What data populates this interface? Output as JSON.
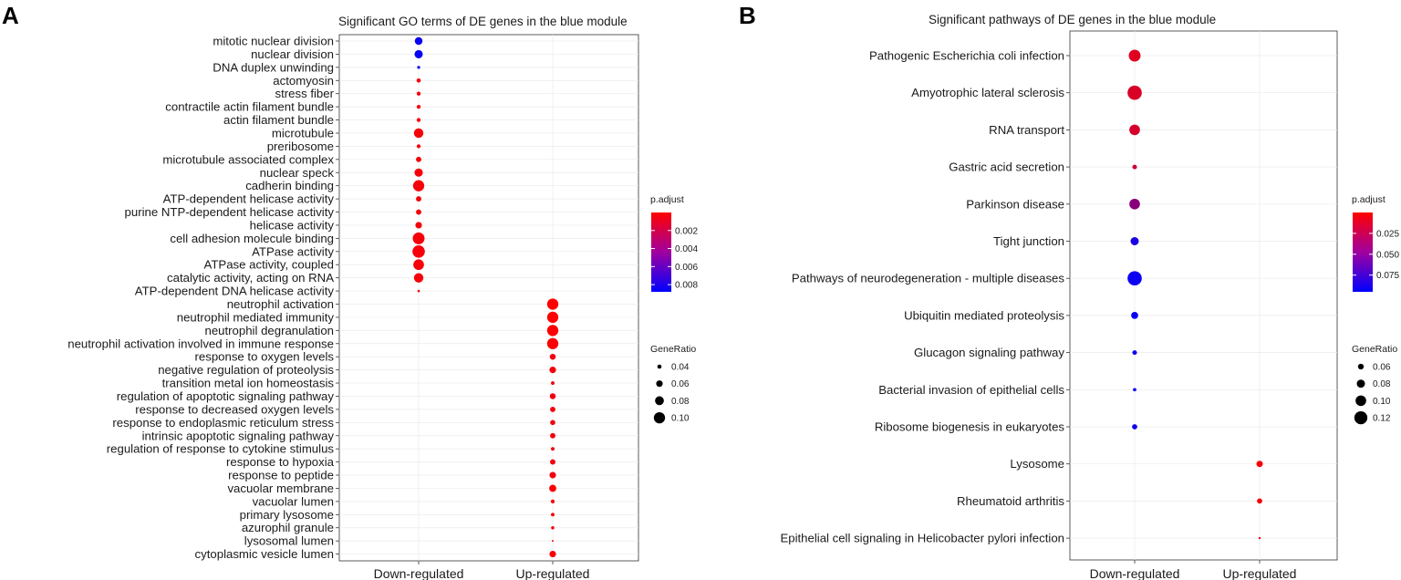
{
  "chart_data": [
    {
      "panel": "A",
      "type": "scatter",
      "title": "Significant GO terms of DE genes in the blue module",
      "x_categories": [
        "Down-regulated",
        "Up-regulated"
      ],
      "y_categories": [
        "mitotic nuclear division",
        "nuclear division",
        "DNA duplex unwinding",
        "actomyosin",
        "stress fiber",
        "contractile actin filament bundle",
        "actin filament bundle",
        "microtubule",
        "preribosome",
        "microtubule associated complex",
        "nuclear speck",
        "cadherin binding",
        "ATP-dependent helicase activity",
        "purine NTP-dependent helicase activity",
        "helicase activity",
        "cell adhesion molecule binding",
        "ATPase activity",
        "ATPase activity, coupled",
        "catalytic activity, acting on RNA",
        "ATP-dependent DNA helicase activity",
        "neutrophil activation",
        "neutrophil mediated immunity",
        "neutrophil degranulation",
        "neutrophil activation involved in immune response",
        "response to oxygen levels",
        "negative regulation of proteolysis",
        "transition metal ion homeostasis",
        "regulation of apoptotic signaling pathway",
        "response to decreased oxygen levels",
        "response to endoplasmic reticulum stress",
        "intrinsic apoptotic signaling pathway",
        "regulation of response to cytokine stimulus",
        "response to hypoxia",
        "response to peptide",
        "vacuolar membrane",
        "vacuolar lumen",
        "primary lysosome",
        "azurophil granule",
        "lysosomal lumen",
        "cytoplasmic vesicle lumen"
      ],
      "points": [
        {
          "term": "mitotic nuclear division",
          "group": "Down-regulated",
          "gene_ratio": 0.07,
          "p_adjust": 0.0085
        },
        {
          "term": "nuclear division",
          "group": "Down-regulated",
          "gene_ratio": 0.075,
          "p_adjust": 0.0085
        },
        {
          "term": "DNA duplex unwinding",
          "group": "Down-regulated",
          "gene_ratio": 0.03,
          "p_adjust": 0.0082
        },
        {
          "term": "actomyosin",
          "group": "Down-regulated",
          "gene_ratio": 0.04,
          "p_adjust": 0.0003
        },
        {
          "term": "stress fiber",
          "group": "Down-regulated",
          "gene_ratio": 0.038,
          "p_adjust": 0.0003
        },
        {
          "term": "contractile actin filament bundle",
          "group": "Down-regulated",
          "gene_ratio": 0.038,
          "p_adjust": 0.0003
        },
        {
          "term": "actin filament bundle",
          "group": "Down-regulated",
          "gene_ratio": 0.038,
          "p_adjust": 0.0003
        },
        {
          "term": "microtubule",
          "group": "Down-regulated",
          "gene_ratio": 0.085,
          "p_adjust": 0.0003
        },
        {
          "term": "preribosome",
          "group": "Down-regulated",
          "gene_ratio": 0.038,
          "p_adjust": 0.0003
        },
        {
          "term": "microtubule associated complex",
          "group": "Down-regulated",
          "gene_ratio": 0.05,
          "p_adjust": 0.0003
        },
        {
          "term": "nuclear speck",
          "group": "Down-regulated",
          "gene_ratio": 0.075,
          "p_adjust": 0.0003
        },
        {
          "term": "cadherin binding",
          "group": "Down-regulated",
          "gene_ratio": 0.1,
          "p_adjust": 0.0003
        },
        {
          "term": "ATP-dependent helicase activity",
          "group": "Down-regulated",
          "gene_ratio": 0.05,
          "p_adjust": 0.0003
        },
        {
          "term": "purine NTP-dependent helicase activity",
          "group": "Down-regulated",
          "gene_ratio": 0.05,
          "p_adjust": 0.0003
        },
        {
          "term": "helicase activity",
          "group": "Down-regulated",
          "gene_ratio": 0.06,
          "p_adjust": 0.0003
        },
        {
          "term": "cell adhesion molecule binding",
          "group": "Down-regulated",
          "gene_ratio": 0.105,
          "p_adjust": 0.0003
        },
        {
          "term": "ATPase activity",
          "group": "Down-regulated",
          "gene_ratio": 0.11,
          "p_adjust": 0.0003
        },
        {
          "term": "ATPase activity, coupled",
          "group": "Down-regulated",
          "gene_ratio": 0.095,
          "p_adjust": 0.0003
        },
        {
          "term": "catalytic activity, acting on RNA",
          "group": "Down-regulated",
          "gene_ratio": 0.085,
          "p_adjust": 0.0003
        },
        {
          "term": "ATP-dependent DNA helicase activity",
          "group": "Down-regulated",
          "gene_ratio": 0.025,
          "p_adjust": 0.0003
        },
        {
          "term": "neutrophil activation",
          "group": "Up-regulated",
          "gene_ratio": 0.1,
          "p_adjust": 0.0001
        },
        {
          "term": "neutrophil mediated immunity",
          "group": "Up-regulated",
          "gene_ratio": 0.1,
          "p_adjust": 0.0001
        },
        {
          "term": "neutrophil degranulation",
          "group": "Up-regulated",
          "gene_ratio": 0.1,
          "p_adjust": 0.0001
        },
        {
          "term": "neutrophil activation involved in immune response",
          "group": "Up-regulated",
          "gene_ratio": 0.1,
          "p_adjust": 0.0001
        },
        {
          "term": "response to oxygen levels",
          "group": "Up-regulated",
          "gene_ratio": 0.055,
          "p_adjust": 0.0005
        },
        {
          "term": "negative regulation of proteolysis",
          "group": "Up-regulated",
          "gene_ratio": 0.06,
          "p_adjust": 0.0005
        },
        {
          "term": "transition metal ion homeostasis",
          "group": "Up-regulated",
          "gene_ratio": 0.035,
          "p_adjust": 0.0005
        },
        {
          "term": "regulation of apoptotic signaling pathway",
          "group": "Up-regulated",
          "gene_ratio": 0.055,
          "p_adjust": 0.0005
        },
        {
          "term": "response to decreased oxygen levels",
          "group": "Up-regulated",
          "gene_ratio": 0.05,
          "p_adjust": 0.0005
        },
        {
          "term": "response to endoplasmic reticulum stress",
          "group": "Up-regulated",
          "gene_ratio": 0.048,
          "p_adjust": 0.0005
        },
        {
          "term": "intrinsic apoptotic signaling pathway",
          "group": "Up-regulated",
          "gene_ratio": 0.05,
          "p_adjust": 0.0005
        },
        {
          "term": "regulation of response to cytokine stimulus",
          "group": "Up-regulated",
          "gene_ratio": 0.035,
          "p_adjust": 0.0005
        },
        {
          "term": "response to hypoxia",
          "group": "Up-regulated",
          "gene_ratio": 0.05,
          "p_adjust": 0.0005
        },
        {
          "term": "response to peptide",
          "group": "Up-regulated",
          "gene_ratio": 0.06,
          "p_adjust": 0.0005
        },
        {
          "term": "vacuolar membrane",
          "group": "Up-regulated",
          "gene_ratio": 0.065,
          "p_adjust": 0.0002
        },
        {
          "term": "vacuolar lumen",
          "group": "Up-regulated",
          "gene_ratio": 0.038,
          "p_adjust": 0.0002
        },
        {
          "term": "primary lysosome",
          "group": "Up-regulated",
          "gene_ratio": 0.035,
          "p_adjust": 0.0002
        },
        {
          "term": "azurophil granule",
          "group": "Up-regulated",
          "gene_ratio": 0.032,
          "p_adjust": 0.0002
        },
        {
          "term": "lysosomal lumen",
          "group": "Up-regulated",
          "gene_ratio": 0.02,
          "p_adjust": 0.0002
        },
        {
          "term": "cytoplasmic vesicle lumen",
          "group": "Up-regulated",
          "gene_ratio": 0.06,
          "p_adjust": 0.0002
        }
      ],
      "color_legend": {
        "title": "p.adjust",
        "ticks": [
          "0.002",
          "0.004",
          "0.006",
          "0.008"
        ],
        "tick_values": [
          0.002,
          0.004,
          0.006,
          0.008
        ],
        "range": [
          0.0,
          0.0088
        ],
        "low_color": "#ff0000",
        "high_color": "#0000ff",
        "placement": "right"
      },
      "size_legend": {
        "title": "GeneRatio",
        "ticks": [
          "0.04",
          "0.06",
          "0.08",
          "0.10"
        ],
        "tick_values": [
          0.04,
          0.06,
          0.08,
          0.1
        ],
        "placement": "right"
      },
      "grid": true
    },
    {
      "panel": "B",
      "type": "scatter",
      "title": "Significant pathways of DE genes in the blue module",
      "x_categories": [
        "Down-regulated",
        "Up-regulated"
      ],
      "y_categories": [
        "Pathogenic Escherichia coli infection",
        "Amyotrophic lateral sclerosis",
        "RNA transport",
        "Gastric acid secretion",
        "Parkinson disease",
        "Tight junction",
        "Pathways of neurodegeneration - multiple diseases",
        "Ubiquitin mediated proteolysis",
        "Glucagon signaling pathway",
        "Bacterial invasion of epithelial cells",
        "Ribosome biogenesis in eukaryotes",
        "Lysosome",
        "Rheumatoid arthritis",
        "Epithelial cell signaling in Helicobacter pylori infection"
      ],
      "points": [
        {
          "term": "Pathogenic Escherichia coli infection",
          "group": "Down-regulated",
          "gene_ratio": 0.11,
          "p_adjust": 0.012
        },
        {
          "term": "Amyotrophic lateral sclerosis",
          "group": "Down-regulated",
          "gene_ratio": 0.13,
          "p_adjust": 0.014
        },
        {
          "term": "RNA transport",
          "group": "Down-regulated",
          "gene_ratio": 0.1,
          "p_adjust": 0.016
        },
        {
          "term": "Gastric acid secretion",
          "group": "Down-regulated",
          "gene_ratio": 0.05,
          "p_adjust": 0.02
        },
        {
          "term": "Parkinson disease",
          "group": "Down-regulated",
          "gene_ratio": 0.1,
          "p_adjust": 0.045
        },
        {
          "term": "Tight junction",
          "group": "Down-regulated",
          "gene_ratio": 0.08,
          "p_adjust": 0.085
        },
        {
          "term": "Pathways of neurodegeneration - multiple diseases",
          "group": "Down-regulated",
          "gene_ratio": 0.13,
          "p_adjust": 0.09
        },
        {
          "term": "Ubiquitin mediated proteolysis",
          "group": "Down-regulated",
          "gene_ratio": 0.07,
          "p_adjust": 0.09
        },
        {
          "term": "Glucagon signaling pathway",
          "group": "Down-regulated",
          "gene_ratio": 0.05,
          "p_adjust": 0.09
        },
        {
          "term": "Bacterial invasion of epithelial cells",
          "group": "Down-regulated",
          "gene_ratio": 0.04,
          "p_adjust": 0.09
        },
        {
          "term": "Ribosome biogenesis in eukaryotes",
          "group": "Down-regulated",
          "gene_ratio": 0.055,
          "p_adjust": 0.09
        },
        {
          "term": "Lysosome",
          "group": "Up-regulated",
          "gene_ratio": 0.065,
          "p_adjust": 0.003
        },
        {
          "term": "Rheumatoid arthritis",
          "group": "Up-regulated",
          "gene_ratio": 0.055,
          "p_adjust": 0.003
        },
        {
          "term": "Epithelial cell signaling in Helicobacter pylori infection",
          "group": "Up-regulated",
          "gene_ratio": 0.03,
          "p_adjust": 0.003
        }
      ],
      "color_legend": {
        "title": "p.adjust",
        "ticks": [
          "0.025",
          "0.050",
          "0.075"
        ],
        "tick_values": [
          0.025,
          0.05,
          0.075
        ],
        "range": [
          0.0,
          0.095
        ],
        "low_color": "#ff0000",
        "high_color": "#0000ff",
        "placement": "right"
      },
      "size_legend": {
        "title": "GeneRatio",
        "ticks": [
          "0.06",
          "0.08",
          "0.10",
          "0.12"
        ],
        "tick_values": [
          0.06,
          0.08,
          0.1,
          0.12
        ],
        "placement": "right"
      },
      "grid": true
    }
  ]
}
